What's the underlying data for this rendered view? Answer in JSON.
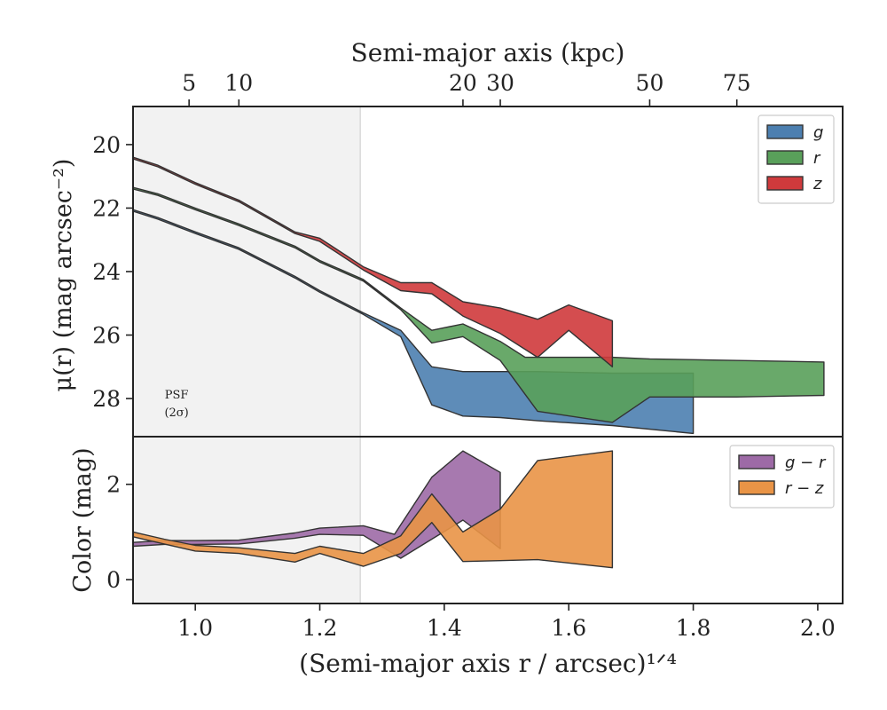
{
  "chart_data": [
    {
      "type": "area",
      "panel": "surface-brightness",
      "top_axis": {
        "label": "Semi-major axis (kpc)",
        "ticks": [
          5,
          10,
          20,
          30,
          50,
          75
        ],
        "tick_positions_x": [
          0.99,
          1.07,
          1.43,
          1.49,
          1.73,
          1.87
        ]
      },
      "xlim": [
        0.9,
        2.04
      ],
      "ylim": [
        29.2,
        18.8
      ],
      "y_inverted": true,
      "ylabel": "μ(r) (mag arcsec⁻²)",
      "yticks": [
        20,
        22,
        24,
        26,
        28
      ],
      "psf_region": {
        "xmax": 1.265,
        "label_line1": "PSF",
        "label_line2": "(2σ)"
      },
      "legend": {
        "position": "top-right",
        "entries": [
          "g",
          "r",
          "z"
        ]
      },
      "series": [
        {
          "name": "g",
          "color": "#4c7fb0",
          "upper": [
            [
              0.9,
              22.05
            ],
            [
              0.94,
              22.3
            ],
            [
              1.0,
              22.75
            ],
            [
              1.07,
              23.25
            ],
            [
              1.16,
              24.15
            ],
            [
              1.2,
              24.6
            ],
            [
              1.27,
              25.3
            ],
            [
              1.33,
              25.85
            ],
            [
              1.38,
              27.0
            ],
            [
              1.43,
              27.15
            ],
            [
              1.49,
              27.15
            ],
            [
              1.55,
              27.15
            ],
            [
              1.67,
              27.2
            ],
            [
              1.8,
              27.2
            ]
          ],
          "lower": [
            [
              0.9,
              22.1
            ],
            [
              0.94,
              22.35
            ],
            [
              1.0,
              22.8
            ],
            [
              1.07,
              23.3
            ],
            [
              1.16,
              24.2
            ],
            [
              1.2,
              24.65
            ],
            [
              1.27,
              25.35
            ],
            [
              1.33,
              26.05
            ],
            [
              1.38,
              28.2
            ],
            [
              1.43,
              28.55
            ],
            [
              1.49,
              28.6
            ],
            [
              1.55,
              28.7
            ],
            [
              1.67,
              28.85
            ],
            [
              1.8,
              29.1
            ]
          ]
        },
        {
          "name": "r",
          "color": "#59a05a",
          "upper": [
            [
              0.9,
              21.35
            ],
            [
              0.94,
              21.55
            ],
            [
              1.0,
              22.0
            ],
            [
              1.07,
              22.5
            ],
            [
              1.16,
              23.2
            ],
            [
              1.2,
              23.65
            ],
            [
              1.27,
              24.25
            ],
            [
              1.33,
              25.15
            ],
            [
              1.38,
              25.85
            ],
            [
              1.43,
              25.65
            ],
            [
              1.49,
              26.2
            ],
            [
              1.53,
              26.7
            ],
            [
              1.67,
              26.7
            ],
            [
              1.73,
              26.75
            ],
            [
              2.01,
              26.85
            ]
          ],
          "lower": [
            [
              0.9,
              21.4
            ],
            [
              0.94,
              21.6
            ],
            [
              1.0,
              22.05
            ],
            [
              1.07,
              22.55
            ],
            [
              1.16,
              23.25
            ],
            [
              1.2,
              23.7
            ],
            [
              1.27,
              24.3
            ],
            [
              1.33,
              25.2
            ],
            [
              1.38,
              26.25
            ],
            [
              1.43,
              26.05
            ],
            [
              1.49,
              26.8
            ],
            [
              1.55,
              28.4
            ],
            [
              1.67,
              28.75
            ],
            [
              1.73,
              27.95
            ],
            [
              1.87,
              27.95
            ],
            [
              2.01,
              27.9
            ]
          ]
        },
        {
          "name": "z",
          "color": "#cf3a3c",
          "upper": [
            [
              0.9,
              20.4
            ],
            [
              0.94,
              20.65
            ],
            [
              1.0,
              21.2
            ],
            [
              1.07,
              21.75
            ],
            [
              1.16,
              22.75
            ],
            [
              1.2,
              22.95
            ],
            [
              1.27,
              23.85
            ],
            [
              1.33,
              24.35
            ],
            [
              1.38,
              24.35
            ],
            [
              1.43,
              24.95
            ],
            [
              1.49,
              25.15
            ],
            [
              1.55,
              25.5
            ],
            [
              1.6,
              25.05
            ],
            [
              1.67,
              25.55
            ]
          ],
          "lower": [
            [
              0.9,
              20.45
            ],
            [
              0.94,
              20.7
            ],
            [
              1.0,
              21.25
            ],
            [
              1.07,
              21.8
            ],
            [
              1.16,
              22.8
            ],
            [
              1.2,
              23.05
            ],
            [
              1.27,
              23.95
            ],
            [
              1.33,
              24.6
            ],
            [
              1.38,
              24.7
            ],
            [
              1.43,
              25.4
            ],
            [
              1.49,
              25.95
            ],
            [
              1.55,
              26.7
            ],
            [
              1.6,
              25.85
            ],
            [
              1.67,
              27.0
            ]
          ]
        }
      ]
    },
    {
      "type": "area",
      "panel": "color",
      "xlim": [
        0.9,
        2.04
      ],
      "ylim": [
        -0.5,
        3.0
      ],
      "xlabel": "(Semi-major axis r / arcsec)¹ᐟ⁴",
      "xticks": [
        1.0,
        1.2,
        1.4,
        1.6,
        1.8,
        2.0
      ],
      "xtick_labels": [
        "1.0",
        "1.2",
        "1.4",
        "1.6",
        "1.8",
        "2.0"
      ],
      "ylabel": "Color (mag)",
      "yticks": [
        0,
        2
      ],
      "legend": {
        "position": "top-right",
        "entries": [
          "g − r",
          "r − z"
        ]
      },
      "series": [
        {
          "name": "g − r",
          "color": "#9d6aa6",
          "upper": [
            [
              0.9,
              0.78
            ],
            [
              0.95,
              0.82
            ],
            [
              1.0,
              0.82
            ],
            [
              1.07,
              0.83
            ],
            [
              1.16,
              0.98
            ],
            [
              1.2,
              1.08
            ],
            [
              1.27,
              1.13
            ],
            [
              1.32,
              0.95
            ],
            [
              1.38,
              2.15
            ],
            [
              1.43,
              2.7
            ],
            [
              1.49,
              2.25
            ]
          ],
          "lower": [
            [
              0.9,
              0.7
            ],
            [
              0.95,
              0.74
            ],
            [
              1.0,
              0.74
            ],
            [
              1.07,
              0.75
            ],
            [
              1.16,
              0.87
            ],
            [
              1.2,
              0.95
            ],
            [
              1.27,
              0.93
            ],
            [
              1.33,
              0.45
            ],
            [
              1.38,
              0.85
            ],
            [
              1.43,
              1.25
            ],
            [
              1.49,
              0.65
            ]
          ]
        },
        {
          "name": "r − z",
          "color": "#e99446",
          "upper": [
            [
              0.9,
              1.0
            ],
            [
              0.95,
              0.85
            ],
            [
              1.0,
              0.72
            ],
            [
              1.07,
              0.67
            ],
            [
              1.16,
              0.55
            ],
            [
              1.2,
              0.7
            ],
            [
              1.27,
              0.55
            ],
            [
              1.33,
              0.92
            ],
            [
              1.38,
              1.8
            ],
            [
              1.43,
              1.0
            ],
            [
              1.49,
              1.48
            ],
            [
              1.55,
              2.5
            ],
            [
              1.67,
              2.7
            ]
          ],
          "lower": [
            [
              0.9,
              0.9
            ],
            [
              0.95,
              0.75
            ],
            [
              1.0,
              0.6
            ],
            [
              1.07,
              0.55
            ],
            [
              1.16,
              0.37
            ],
            [
              1.2,
              0.55
            ],
            [
              1.27,
              0.28
            ],
            [
              1.33,
              0.55
            ],
            [
              1.38,
              1.2
            ],
            [
              1.43,
              0.38
            ],
            [
              1.49,
              0.4
            ],
            [
              1.55,
              0.42
            ],
            [
              1.67,
              0.25
            ]
          ]
        }
      ]
    }
  ]
}
